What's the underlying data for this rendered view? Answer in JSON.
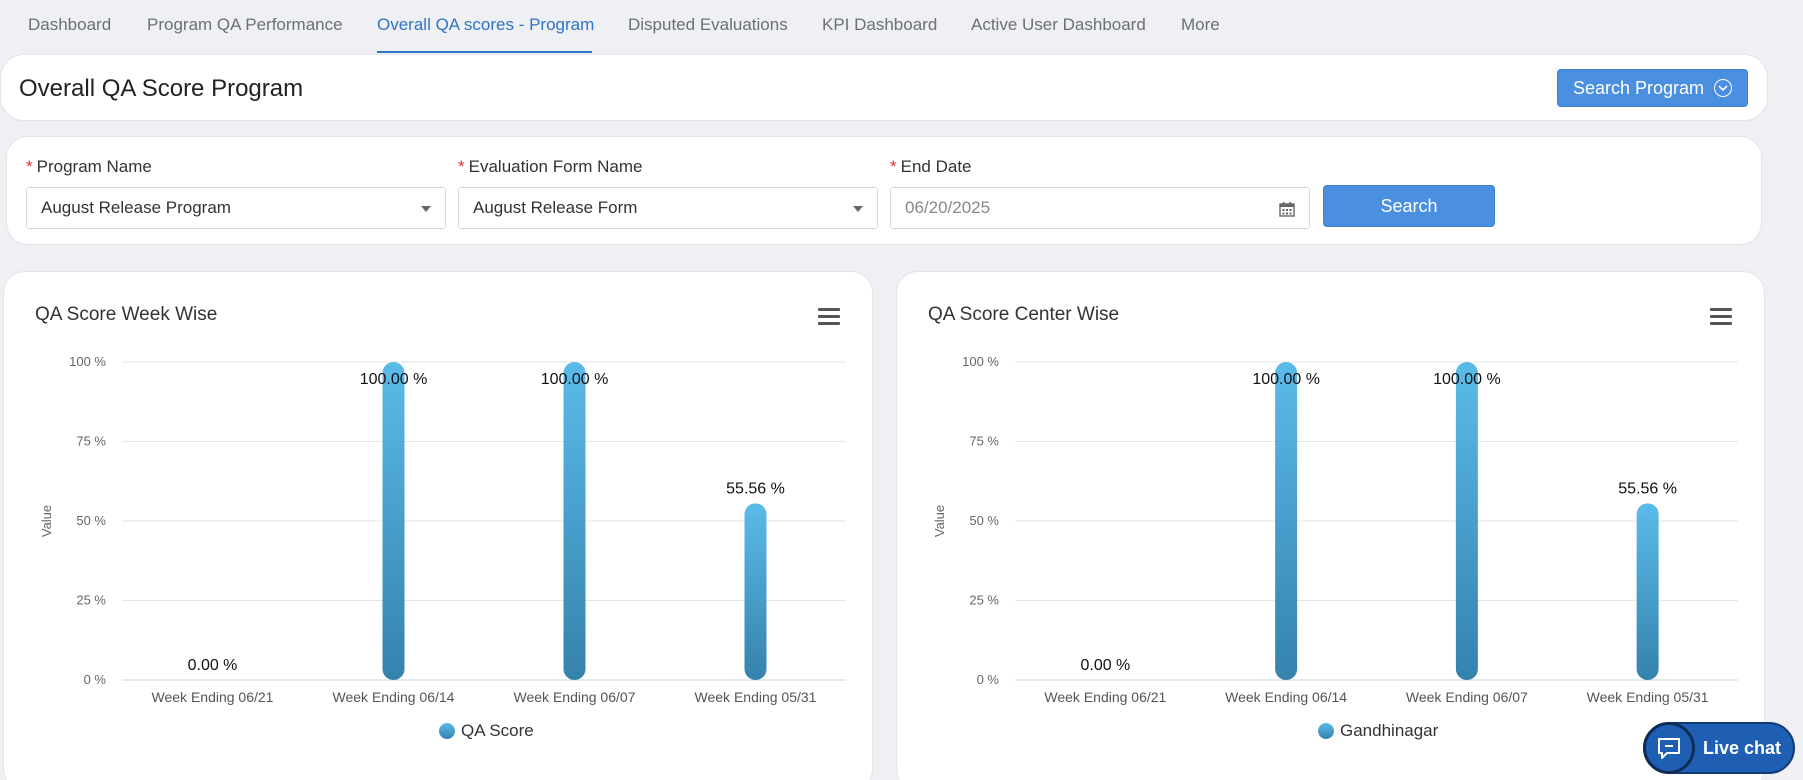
{
  "tabs": [
    {
      "label": "Dashboard"
    },
    {
      "label": "Program QA Performance"
    },
    {
      "label": "Overall QA scores - Program"
    },
    {
      "label": "Disputed Evaluations"
    },
    {
      "label": "KPI Dashboard"
    },
    {
      "label": "Active User Dashboard"
    },
    {
      "label": "More"
    }
  ],
  "header": {
    "title": "Overall QA Score Program",
    "search_program_label": "Search Program"
  },
  "filters": {
    "program_label": "Program Name",
    "program_value": "August Release Program",
    "form_label": "Evaluation Form Name",
    "form_value": "August Release Form",
    "end_date_label": "End Date",
    "end_date_value": "06/20/2025",
    "search_label": "Search",
    "required_mark": "*"
  },
  "colors": {
    "accent": "#2f74c4",
    "button": "#4a8fe0",
    "bar_top": "#5bbbe8",
    "bar_bottom": "#3582ad"
  },
  "live_chat": {
    "label": "Live chat"
  },
  "chart_data": [
    {
      "type": "bar",
      "title": "QA Score Week Wise",
      "ylabel": "Value",
      "xlabel": "",
      "categories": [
        "Week Ending 06/21",
        "Week Ending 06/14",
        "Week Ending 06/07",
        "Week Ending 05/31"
      ],
      "series": [
        {
          "name": "QA Score",
          "values": [
            0.0,
            100.0,
            100.0,
            55.56
          ]
        }
      ],
      "data_labels": [
        "0.00 %",
        "100.00 %",
        "100.00 %",
        "55.56 %"
      ],
      "y_ticks": [
        "0 %",
        "25 %",
        "50 %",
        "75 %",
        "100 %"
      ],
      "ylim": [
        0,
        100
      ],
      "grid": true,
      "legend": "bottom"
    },
    {
      "type": "bar",
      "title": "QA Score Center Wise",
      "ylabel": "Value",
      "xlabel": "",
      "categories": [
        "Week Ending 06/21",
        "Week Ending 06/14",
        "Week Ending 06/07",
        "Week Ending 05/31"
      ],
      "series": [
        {
          "name": "Gandhinagar",
          "values": [
            0.0,
            100.0,
            100.0,
            55.56
          ]
        }
      ],
      "data_labels": [
        "0.00 %",
        "100.00 %",
        "100.00 %",
        "55.56 %"
      ],
      "y_ticks": [
        "0 %",
        "25 %",
        "50 %",
        "75 %",
        "100 %"
      ],
      "ylim": [
        0,
        100
      ],
      "grid": true,
      "legend": "bottom"
    }
  ]
}
